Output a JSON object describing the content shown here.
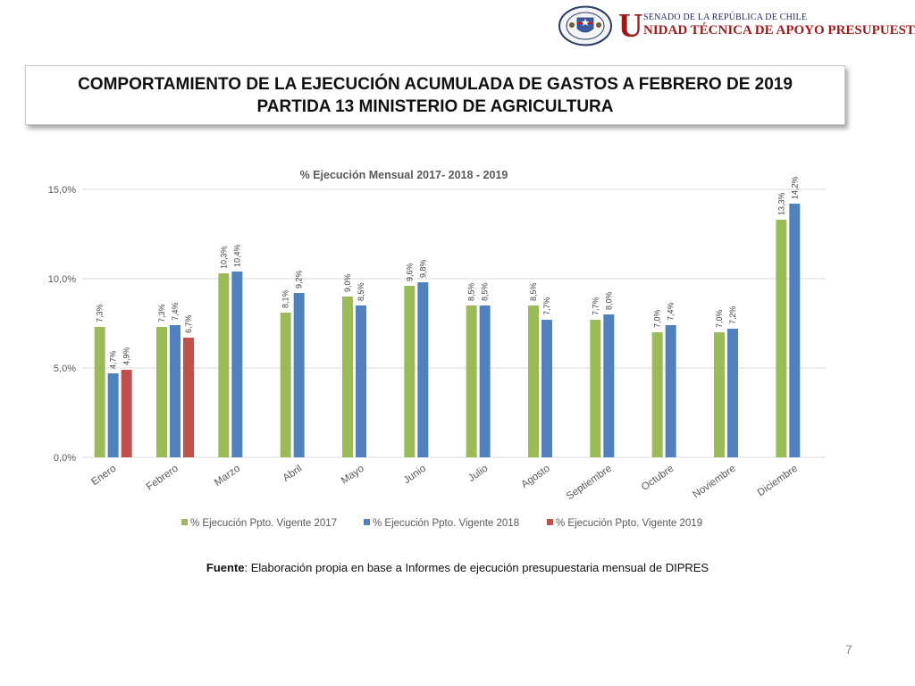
{
  "header": {
    "logo_initial": "U",
    "logo_line1": "SENADO DE LA REPÚBLICA DE CHILE",
    "logo_line2": "NIDAD TÉCNICA DE APOYO PRESUPUESTARIO",
    "seal_text_top": "REPÚBLICA DE CHILE",
    "seal_text_bottom": "SENADO"
  },
  "title": {
    "line1": "COMPORTAMIENTO DE LA EJECUCIÓN ACUMULADA DE GASTOS A FEBRERO DE 2019",
    "line2": "PARTIDA 13 MINISTERIO DE AGRICULTURA"
  },
  "source": {
    "label": "Fuente",
    "text": ": Elaboración propia en base  a Informes de ejecución presupuestaria mensual de DIPRES"
  },
  "page_number": "7",
  "chart_data": {
    "type": "bar",
    "title": "% Ejecución Mensual 2017- 2018 - 2019",
    "categories": [
      "Enero",
      "Febrero",
      "Marzo",
      "Abril",
      "Mayo",
      "Junio",
      "Julio",
      "Agosto",
      "Septiembre",
      "Octubre",
      "Noviembre",
      "Diciembre"
    ],
    "series": [
      {
        "name": "% Ejecución Ppto. Vigente 2017",
        "color": "#9bbb59",
        "values": [
          7.3,
          7.3,
          10.3,
          8.1,
          9.0,
          9.6,
          8.5,
          8.5,
          7.7,
          7.0,
          7.0,
          13.3
        ],
        "labels": [
          "7,3%",
          "7,3%",
          "10,3%",
          "8,1%",
          "9,0%",
          "9,6%",
          "8,5%",
          "8,5%",
          "7,7%",
          "7,0%",
          "7,0%",
          "13,3%"
        ]
      },
      {
        "name": "% Ejecución Ppto. Vigente 2018",
        "color": "#4f81bd",
        "values": [
          4.7,
          7.4,
          10.4,
          9.2,
          8.5,
          9.8,
          8.5,
          7.7,
          8.0,
          7.4,
          7.2,
          14.2
        ],
        "labels": [
          "4,7%",
          "7,4%",
          "10,4%",
          "9,2%",
          "8,5%",
          "9,8%",
          "8,5%",
          "7,7%",
          "8,0%",
          "7,4%",
          "7,2%",
          "14,2%"
        ]
      },
      {
        "name": "% Ejecución Ppto. Vigente 2019",
        "color": "#c0504d",
        "values": [
          4.9,
          6.7,
          null,
          null,
          null,
          null,
          null,
          null,
          null,
          null,
          null,
          null
        ],
        "labels": [
          "4,9%",
          "6,7%",
          "",
          "",
          "",
          "",
          "",
          "",
          "",
          "",
          "",
          ""
        ]
      }
    ],
    "yticks": [
      0,
      5,
      10,
      15
    ],
    "ytick_labels": [
      "0,0%",
      "5,0%",
      "10,0%",
      "15,0%"
    ],
    "ylim": [
      0,
      15
    ],
    "grid": true,
    "legend_position": "bottom",
    "xlabel": "",
    "ylabel": ""
  }
}
